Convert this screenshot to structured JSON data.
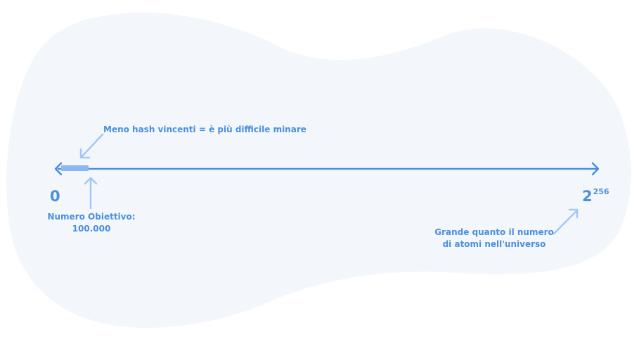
{
  "labels": {
    "less_winning_hashes": "Meno hash vincenti = è più difficile minare",
    "zero": "0",
    "target_title": "Numero Obiettivo:",
    "target_value": "100.000",
    "max_base": "2",
    "max_exponent": "256",
    "atoms_line1": "Grande quanto il numero",
    "atoms_line2": "di atomi nell'universo"
  },
  "colors": {
    "background_blob": "#f3f7fb",
    "line": "#4a8fe0",
    "arrows_light": "#a3c8f6",
    "target_segment": "#8bb8f2",
    "text": "#4a8fe0"
  }
}
